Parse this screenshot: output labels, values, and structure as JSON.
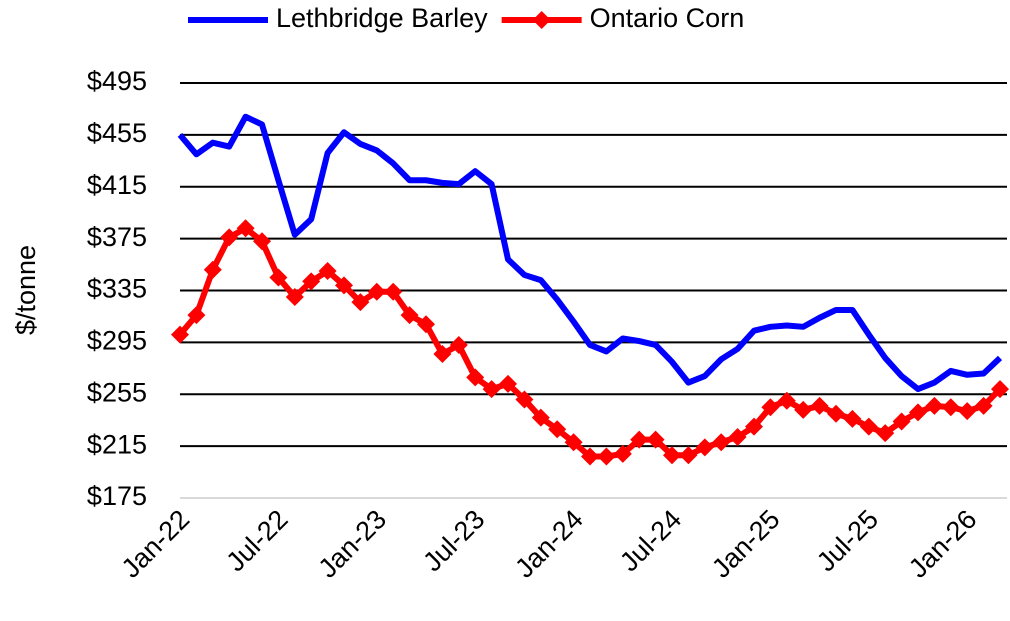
{
  "chart_data": {
    "type": "line",
    "y_label": "$/tonne",
    "categories": [
      "Jan-22",
      null,
      null,
      null,
      null,
      null,
      "Jul-22",
      null,
      null,
      null,
      null,
      null,
      "Jan-23",
      null,
      null,
      null,
      null,
      null,
      "Jul-23",
      null,
      null,
      null,
      null,
      null,
      "Jan-24",
      null,
      null,
      null,
      null,
      null,
      "Jul-24",
      null,
      null,
      null,
      null,
      null,
      "Jan-25",
      null,
      null,
      null,
      null,
      null,
      "Jul-25",
      null,
      null,
      null,
      null,
      null,
      "Jan-26",
      null,
      null
    ],
    "series": [
      {
        "name": "Lethbridge Barley",
        "color": "#0000ff",
        "marker": "none",
        "values": [
          455,
          440,
          449,
          446,
          469,
          463,
          420,
          378,
          390,
          441,
          457,
          448,
          443,
          433,
          420,
          420,
          418,
          417,
          427,
          417,
          359,
          347,
          343,
          328,
          311,
          293,
          288,
          298,
          296,
          293,
          280,
          264,
          269,
          282,
          290,
          304,
          307,
          308,
          307,
          314,
          320,
          320,
          301,
          283,
          269,
          259,
          264,
          273,
          270,
          271,
          283
        ]
      },
      {
        "name": "Ontario Corn",
        "color": "#ff0000",
        "marker": "diamond",
        "values": [
          301,
          316,
          351,
          376,
          383,
          373,
          345,
          330,
          342,
          350,
          339,
          326,
          334,
          334,
          316,
          309,
          286,
          293,
          268,
          259,
          263,
          251,
          237,
          228,
          218,
          207,
          207,
          209,
          220,
          220,
          208,
          208,
          214,
          218,
          222,
          230,
          245,
          250,
          243,
          246,
          240,
          236,
          230,
          225,
          234,
          241,
          246,
          245,
          242,
          246,
          259
        ]
      }
    ],
    "ylim": [
      175,
      495
    ],
    "yticks": [
      {
        "value": 175,
        "label": "$175"
      },
      {
        "value": 215,
        "label": "$215"
      },
      {
        "value": 255,
        "label": "$255"
      },
      {
        "value": 295,
        "label": "$295"
      },
      {
        "value": 335,
        "label": "$335"
      },
      {
        "value": 375,
        "label": "$375"
      },
      {
        "value": 415,
        "label": "$415"
      },
      {
        "value": 455,
        "label": "$455"
      },
      {
        "value": 495,
        "label": "$495"
      }
    ],
    "grid": true,
    "legend": "top"
  }
}
